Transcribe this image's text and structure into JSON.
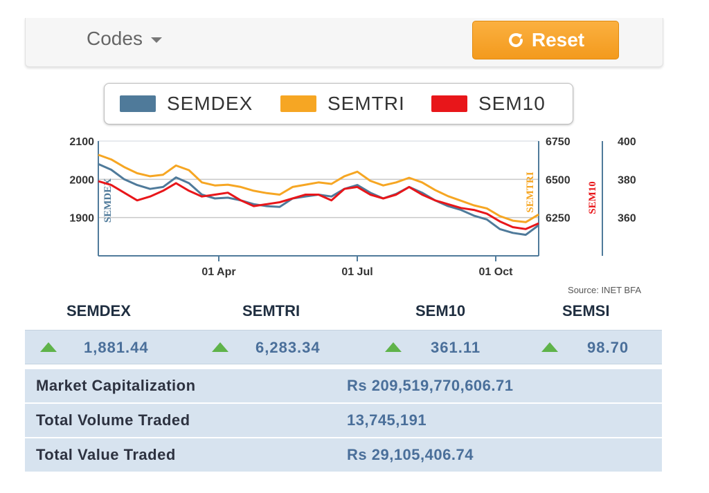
{
  "toolbar": {
    "codes_label": "Codes",
    "reset_label": "Reset"
  },
  "legend": [
    {
      "name": "SEMDEX",
      "color": "#4f7a9a"
    },
    {
      "name": "SEMTRI",
      "color": "#f6a623"
    },
    {
      "name": "SEM10",
      "color": "#e8161a"
    }
  ],
  "chart_data": {
    "type": "line",
    "x_ticks": [
      "01 Apr",
      "01 Jul",
      "01 Oct"
    ],
    "left_axis": {
      "ticks": [
        "2100",
        "2000",
        "1900"
      ],
      "range": [
        1800,
        2100
      ],
      "label": "SEMDEX"
    },
    "mid_axis": {
      "ticks": [
        "6750",
        "6500",
        "6250"
      ],
      "range": [
        6000,
        6750
      ],
      "label": "SEMTRI"
    },
    "right_axis": {
      "ticks": [
        "400",
        "380",
        "360"
      ],
      "range": [
        340,
        400
      ],
      "label": "SEM10"
    },
    "grid": "horizontal",
    "legend_position": "top",
    "source": "Source: INET BFA",
    "series": [
      {
        "name": "SEMDEX",
        "axis": "left",
        "color": "#4f7a9a",
        "values": [
          2040,
          2025,
          2000,
          1985,
          1975,
          1980,
          2005,
          1990,
          1960,
          1950,
          1952,
          1945,
          1935,
          1930,
          1928,
          1950,
          1955,
          1960,
          1955,
          1975,
          1985,
          1965,
          1950,
          1962,
          1980,
          1965,
          1945,
          1930,
          1920,
          1905,
          1895,
          1870,
          1860,
          1855,
          1880
        ]
      },
      {
        "name": "SEMTRI",
        "axis": "mid",
        "color": "#f6a623",
        "values": [
          6660,
          6630,
          6580,
          6540,
          6520,
          6530,
          6590,
          6560,
          6480,
          6460,
          6465,
          6450,
          6425,
          6410,
          6400,
          6450,
          6465,
          6480,
          6470,
          6520,
          6550,
          6490,
          6460,
          6480,
          6510,
          6480,
          6430,
          6390,
          6360,
          6330,
          6310,
          6260,
          6230,
          6220,
          6270
        ]
      },
      {
        "name": "SEM10",
        "axis": "right",
        "color": "#e8161a",
        "values": [
          379,
          377,
          373,
          369,
          371,
          374,
          378,
          374,
          371,
          372,
          373,
          369,
          366,
          367,
          368,
          370,
          372,
          372,
          369,
          375,
          376,
          372,
          370,
          372,
          376,
          372,
          369,
          367,
          365,
          364,
          362,
          358,
          355,
          354,
          357
        ]
      }
    ]
  },
  "index_headers": [
    "SEMDEX",
    "SEMTRI",
    "SEM10",
    "SEMSI"
  ],
  "indices": [
    {
      "name": "SEMDEX",
      "value": "1,881.44",
      "trend": "up"
    },
    {
      "name": "SEMTRI",
      "value": "6,283.34",
      "trend": "up"
    },
    {
      "name": "SEM10",
      "value": "361.11",
      "trend": "up"
    },
    {
      "name": "SEMSI",
      "value": "98.70",
      "trend": "up"
    }
  ],
  "stats": [
    {
      "label": "Market Capitalization",
      "value": "Rs 209,519,770,606.71"
    },
    {
      "label": "Total Volume Traded",
      "value": "13,745,191"
    },
    {
      "label": "Total Value Traded",
      "value": "Rs 29,105,406.74"
    }
  ]
}
